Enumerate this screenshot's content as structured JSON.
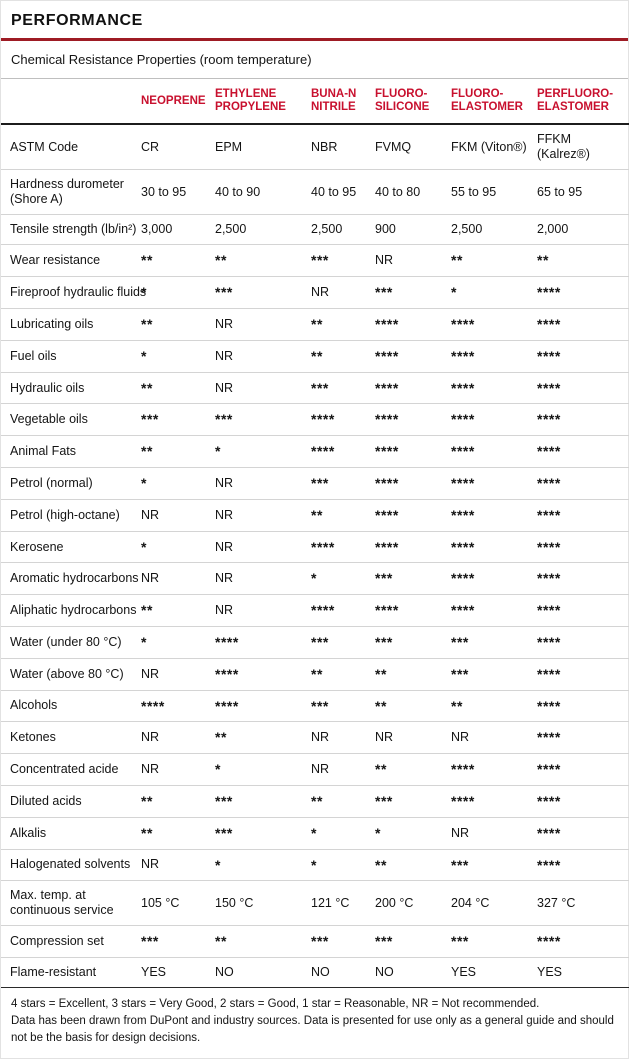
{
  "header": {
    "title": "PERFORMANCE",
    "subtitle": "Chemical Resistance Properties (room temperature)"
  },
  "table": {
    "columns": [
      "NEOPRENE",
      "ETHYLENE\nPROPYLENE",
      "BUNA-N\nNITRILE",
      "FLUORO-\nSILICONE",
      "FLUORO-\nELASTOMER",
      "PERFLUORO-\nELASTOMER"
    ],
    "rows": [
      {
        "label": "ASTM Code",
        "values": [
          "CR",
          "EPM",
          "NBR",
          "FVMQ",
          "FKM (Viton®)",
          "FFKM (Kalrez®)"
        ]
      },
      {
        "label": "Hardness durometer\n(Shore A)",
        "values": [
          "30 to 95",
          "40 to 90",
          "40 to 95",
          "40 to 80",
          "55 to 95",
          "65 to 95"
        ]
      },
      {
        "label": "Tensile strength (lb/in²)",
        "values": [
          "3,000",
          "2,500",
          "2,500",
          "900",
          "2,500",
          "2,000"
        ]
      },
      {
        "label": "Wear resistance",
        "values": [
          "**",
          "**",
          "***",
          "NR",
          "**",
          "**"
        ]
      },
      {
        "label": "Fireproof hydraulic fluids",
        "values": [
          "*",
          "***",
          "NR",
          "***",
          "*",
          "****"
        ]
      },
      {
        "label": "Lubricating oils",
        "values": [
          "**",
          "NR",
          "**",
          "****",
          "****",
          "****"
        ]
      },
      {
        "label": "Fuel oils",
        "values": [
          "*",
          "NR",
          "**",
          "****",
          "****",
          "****"
        ]
      },
      {
        "label": "Hydraulic oils",
        "values": [
          "**",
          "NR",
          "***",
          "****",
          "****",
          "****"
        ]
      },
      {
        "label": "Vegetable oils",
        "values": [
          "***",
          "***",
          "****",
          "****",
          "****",
          "****"
        ]
      },
      {
        "label": "Animal Fats",
        "values": [
          "**",
          "*",
          "****",
          "****",
          "****",
          "****"
        ]
      },
      {
        "label": "Petrol (normal)",
        "values": [
          "*",
          "NR",
          "***",
          "****",
          "****",
          "****"
        ]
      },
      {
        "label": "Petrol (high-octane)",
        "values": [
          "NR",
          "NR",
          "**",
          "****",
          "****",
          "****"
        ]
      },
      {
        "label": "Kerosene",
        "values": [
          "*",
          "NR",
          "****",
          "****",
          "****",
          "****"
        ]
      },
      {
        "label": "Aromatic hydrocarbons",
        "values": [
          "NR",
          "NR",
          "*",
          "***",
          "****",
          "****"
        ]
      },
      {
        "label": "Aliphatic hydrocarbons",
        "values": [
          "**",
          "NR",
          "****",
          "****",
          "****",
          "****"
        ]
      },
      {
        "label": "Water (under 80 °C)",
        "values": [
          "*",
          "****",
          "***",
          "***",
          "***",
          "****"
        ]
      },
      {
        "label": "Water (above 80 °C)",
        "values": [
          "NR",
          "****",
          "**",
          "**",
          "***",
          "****"
        ]
      },
      {
        "label": "Alcohols",
        "values": [
          "****",
          "****",
          "***",
          "**",
          "**",
          "****"
        ]
      },
      {
        "label": "Ketones",
        "values": [
          "NR",
          "**",
          "NR",
          "NR",
          "NR",
          "****"
        ]
      },
      {
        "label": "Concentrated acide",
        "values": [
          "NR",
          "*",
          "NR",
          "**",
          "****",
          "****"
        ]
      },
      {
        "label": "Diluted acids",
        "values": [
          "**",
          "***",
          "**",
          "***",
          "****",
          "****"
        ]
      },
      {
        "label": "Alkalis",
        "values": [
          "**",
          "***",
          "*",
          "*",
          "NR",
          "****"
        ]
      },
      {
        "label": "Halogenated solvents",
        "values": [
          "NR",
          "*",
          "*",
          "**",
          "***",
          "****"
        ]
      },
      {
        "label": "Max. temp. at\ncontinuous service",
        "values": [
          "105 °C",
          "150 °C",
          "121 °C",
          "200 °C",
          "204 °C",
          "327 °C"
        ]
      },
      {
        "label": "Compression set",
        "values": [
          "***",
          "**",
          "***",
          "***",
          "***",
          "****"
        ]
      },
      {
        "label": "Flame-resistant",
        "values": [
          "YES",
          "NO",
          "NO",
          "NO",
          "YES",
          "YES"
        ]
      }
    ]
  },
  "footer": {
    "legend": "4 stars = Excellent, 3 stars = Very Good, 2 stars = Good, 1 star = Reasonable, NR = Not recommended.",
    "disclaimer": "Data has been drawn from DuPont and industry sources. Data is presented for use only as a general guide and should not be the basis for design decisions."
  },
  "colors": {
    "accent_red": "#c8102e",
    "title_rule_red": "#9e1b24",
    "row_divider": "#d4d4d4",
    "heavy_rule": "#1c1c1c"
  }
}
